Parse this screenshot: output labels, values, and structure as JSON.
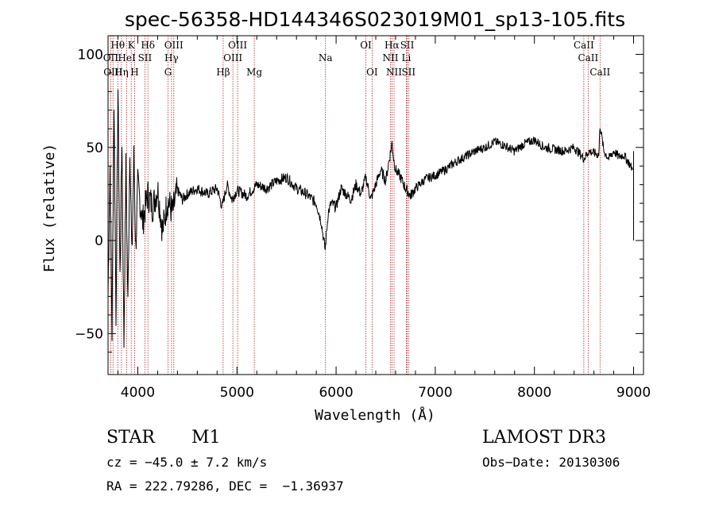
{
  "chart_data": {
    "type": "line",
    "title": "spec-56358-HD144346S023019M01_sp13-105.fits",
    "xlabel": "Wavelength (Å)",
    "ylabel": "Flux (relative)",
    "xlim": [
      3700,
      9100
    ],
    "ylim": [
      -72,
      110
    ],
    "xticks": [
      {
        "value": 4000,
        "label": "4000"
      },
      {
        "value": 5000,
        "label": "5000"
      },
      {
        "value": 6000,
        "label": "6000"
      },
      {
        "value": 7000,
        "label": "7000"
      },
      {
        "value": 8000,
        "label": "8000"
      },
      {
        "value": 9000,
        "label": "9000"
      }
    ],
    "yticks": [
      {
        "value": -50,
        "label": "−50"
      },
      {
        "value": 0,
        "label": "0"
      },
      {
        "value": 50,
        "label": "50"
      },
      {
        "value": 100,
        "label": "100"
      }
    ],
    "series": [
      {
        "name": "spectrum",
        "x": [
          3700,
          3720,
          3740,
          3760,
          3780,
          3800,
          3820,
          3840,
          3860,
          3880,
          3900,
          3920,
          3940,
          3960,
          3980,
          4000,
          4050,
          4100,
          4150,
          4200,
          4250,
          4300,
          4350,
          4400,
          4450,
          4500,
          4600,
          4700,
          4800,
          4850,
          4900,
          4950,
          5000,
          5100,
          5200,
          5300,
          5400,
          5500,
          5600,
          5700,
          5800,
          5850,
          5890,
          5920,
          5950,
          6000,
          6050,
          6100,
          6150,
          6200,
          6250,
          6300,
          6350,
          6400,
          6450,
          6500,
          6550,
          6565,
          6580,
          6600,
          6650,
          6700,
          6750,
          6800,
          6900,
          7000,
          7100,
          7200,
          7300,
          7400,
          7500,
          7600,
          7700,
          7800,
          7900,
          8000,
          8100,
          8200,
          8300,
          8400,
          8450,
          8500,
          8550,
          8600,
          8650,
          8662,
          8700,
          8750,
          8800,
          8850,
          8900,
          8950,
          8990
        ],
        "y": [
          -30,
          40,
          -50,
          75,
          -40,
          82,
          -20,
          55,
          -55,
          40,
          -35,
          52,
          -10,
          45,
          -5,
          30,
          10,
          25,
          18,
          28,
          5,
          22,
          15,
          27,
          22,
          25,
          28,
          25,
          28,
          18,
          30,
          22,
          27,
          24,
          30,
          28,
          32,
          34,
          28,
          25,
          20,
          10,
          -5,
          15,
          20,
          18,
          28,
          25,
          22,
          30,
          25,
          34,
          22,
          30,
          38,
          32,
          48,
          53,
          44,
          38,
          34,
          28,
          24,
          28,
          33,
          35,
          38,
          42,
          45,
          48,
          50,
          53,
          51,
          48,
          52,
          54,
          50,
          49,
          48,
          50,
          47,
          44,
          48,
          47,
          46,
          62,
          48,
          44,
          48,
          45,
          46,
          42,
          38
        ]
      }
    ],
    "lines": [
      {
        "name": "Hθ",
        "wave": 3798,
        "label": "Hθ",
        "row": 1
      },
      {
        "name": "OII",
        "wave": 3727,
        "label": "OII",
        "row": 2
      },
      {
        "name": "OIII",
        "wave": 3750,
        "label": "OIII",
        "row": 3
      },
      {
        "name": "Hη",
        "wave": 3835,
        "label": "Hη",
        "row": 3
      },
      {
        "name": "K",
        "wave": 3934,
        "label": "K",
        "row": 1
      },
      {
        "name": "HeI",
        "wave": 3889,
        "label": "HeI",
        "row": 2
      },
      {
        "name": "H",
        "wave": 3968,
        "label": "H",
        "row": 3
      },
      {
        "name": "SII",
        "wave": 4072,
        "label": "SII",
        "row": 2
      },
      {
        "name": "Hδ",
        "wave": 4102,
        "label": "Hδ",
        "row": 1
      },
      {
        "name": "OIII",
        "wave": 4363,
        "label": "OIII",
        "row": 1
      },
      {
        "name": "Hγ",
        "wave": 4340,
        "label": "Hγ",
        "row": 2
      },
      {
        "name": "G",
        "wave": 4305,
        "label": "G",
        "row": 3
      },
      {
        "name": "Hβ",
        "wave": 4861,
        "label": "Hβ",
        "row": 3
      },
      {
        "name": "OIII",
        "wave": 5007,
        "label": "OIII",
        "row": 1
      },
      {
        "name": "OIII",
        "wave": 4959,
        "label": "OIII",
        "row": 2
      },
      {
        "name": "Mg",
        "wave": 5175,
        "label": "Mg",
        "row": 3
      },
      {
        "name": "Na",
        "wave": 5893,
        "label": "Na",
        "row": 2
      },
      {
        "name": "OI",
        "wave": 6300,
        "label": "OI",
        "row": 1
      },
      {
        "name": "OI",
        "wave": 6363,
        "label": "OI",
        "row": 3
      },
      {
        "name": "Hα",
        "wave": 6563,
        "label": "Hα",
        "row": 1
      },
      {
        "name": "NII",
        "wave": 6548,
        "label": "NII",
        "row": 2
      },
      {
        "name": "NII",
        "wave": 6584,
        "label": "NII",
        "row": 3
      },
      {
        "name": "SII",
        "wave": 6717,
        "label": "SII",
        "row": 1
      },
      {
        "name": "Li",
        "wave": 6708,
        "label": "Li",
        "row": 2
      },
      {
        "name": "SII",
        "wave": 6731,
        "label": "SII",
        "row": 3
      },
      {
        "name": "CaII",
        "wave": 8498,
        "label": "CaII",
        "row": 1
      },
      {
        "name": "CaII",
        "wave": 8542,
        "label": "CaII",
        "row": 2
      },
      {
        "name": "CaII",
        "wave": 8662,
        "label": "CaII",
        "row": 3
      }
    ]
  },
  "info": {
    "object_class": "STAR",
    "subclass": "M1",
    "survey": "LAMOST DR3",
    "cz": "cz = −45.0 ± 7.2 km/s",
    "obs_date": "Obs−Date: 20130306",
    "coords": "RA = 222.79286, DEC =  −1.36937"
  }
}
